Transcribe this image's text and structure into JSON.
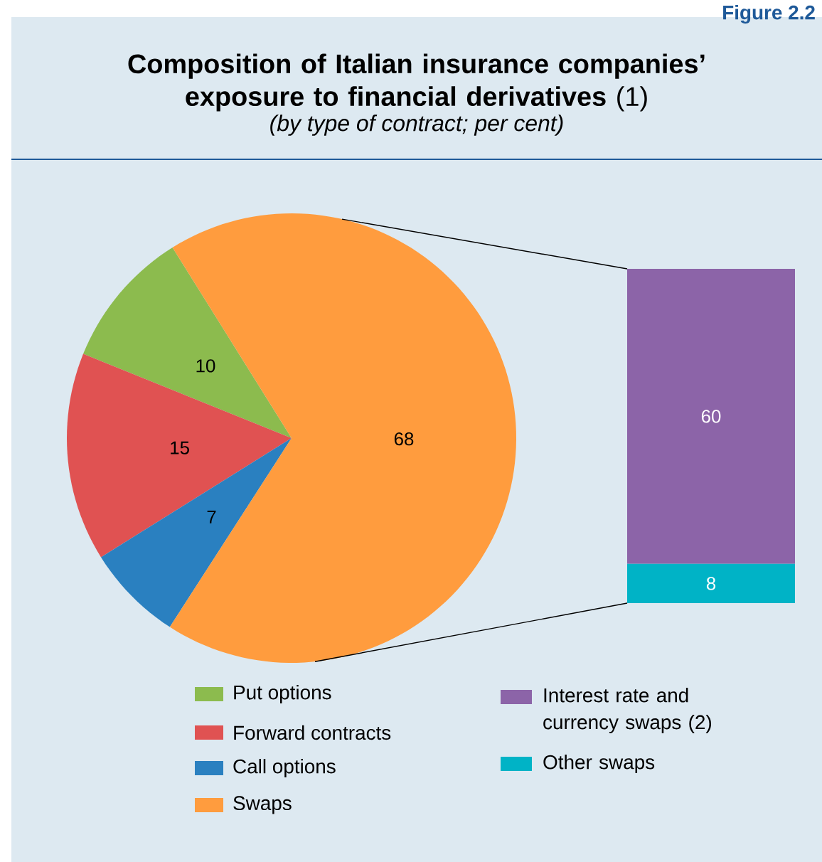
{
  "chart_data": [
    {
      "type": "pie",
      "title": "**Composition of Italian insurance companies’ exposure to financial derivatives** (1)",
      "subtitle": "(by type of contract; per cent)",
      "categories": [
        "Put options",
        "Forward contracts",
        "Call options",
        "Swaps"
      ],
      "values": [
        10,
        15,
        7,
        68
      ],
      "colors": [
        "#8cbb4e",
        "#e05252",
        "#2a80c0",
        "#ff9c3e"
      ],
      "data_labels": true,
      "legend": "bottom",
      "annotations": [
        "Figure 2.2"
      ]
    },
    {
      "type": "bar",
      "stacked": true,
      "categories": [
        null
      ],
      "series": [
        {
          "name": "Other swaps",
          "color": "#00b3c6",
          "values": [
            8
          ]
        },
        {
          "name": "Interest rate and currency swaps (2)",
          "color": "#8c64a8",
          "values": [
            60
          ]
        }
      ],
      "data_labels": true,
      "legend": "bottom"
    }
  ]
}
